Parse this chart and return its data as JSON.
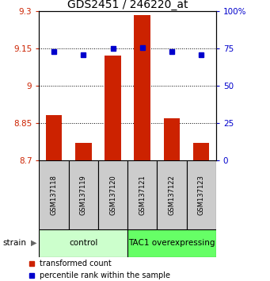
{
  "title": "GDS2451 / 246220_at",
  "samples": [
    "GSM137118",
    "GSM137119",
    "GSM137120",
    "GSM137121",
    "GSM137122",
    "GSM137123"
  ],
  "red_values": [
    8.88,
    8.77,
    9.12,
    9.285,
    8.87,
    8.77
  ],
  "blue_values": [
    73,
    71,
    75,
    75.5,
    73,
    71
  ],
  "ymin": 8.7,
  "ymax": 9.3,
  "y2min": 0,
  "y2max": 100,
  "yticks": [
    8.7,
    8.85,
    9.0,
    9.15,
    9.3
  ],
  "y2ticks": [
    0,
    25,
    50,
    75,
    100
  ],
  "ytick_labels": [
    "8.7",
    "8.85",
    "9",
    "9.15",
    "9.3"
  ],
  "y2tick_labels": [
    "0",
    "25",
    "50",
    "75",
    "100%"
  ],
  "groups": [
    {
      "label": "control",
      "indices": [
        0,
        1,
        2
      ],
      "color": "#ccffcc"
    },
    {
      "label": "TAC1 overexpressing",
      "indices": [
        3,
        4,
        5
      ],
      "color": "#66ff66"
    }
  ],
  "red_color": "#cc2200",
  "blue_color": "#0000cc",
  "bar_width": 0.55,
  "sample_box_color": "#cccccc",
  "strain_label": "strain",
  "legend_red": "transformed count",
  "legend_blue": "percentile rank within the sample",
  "title_fontsize": 10,
  "tick_fontsize": 7.5,
  "sample_fontsize": 6,
  "group_fontsize": 7.5,
  "legend_fontsize": 7
}
